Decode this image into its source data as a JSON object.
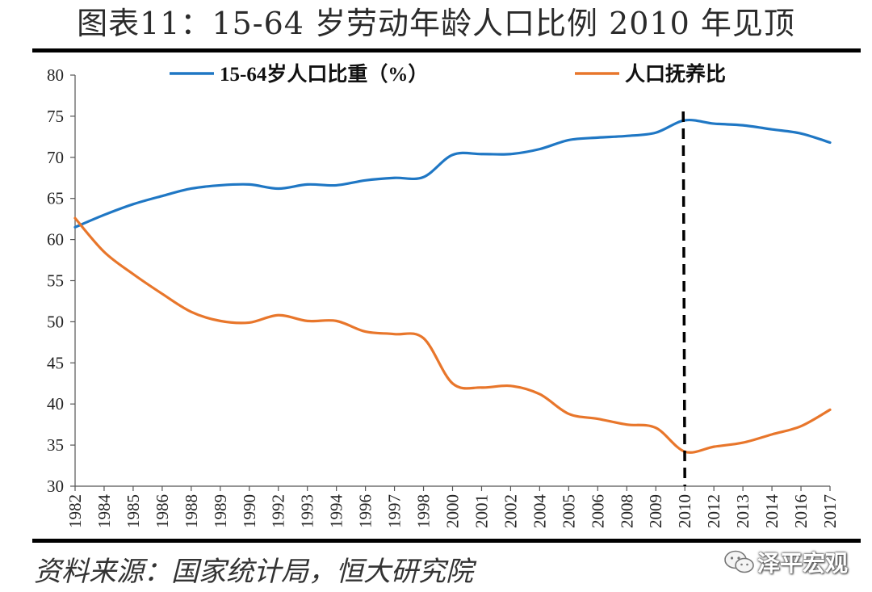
{
  "title": "图表11：15-64 岁劳动年龄人口比例 2010 年见顶",
  "source": "资料来源：国家统计局，恒大研究院",
  "watermark": {
    "text": "泽平宏观",
    "icon": "wechat-icon"
  },
  "colors": {
    "series1": "#1f77c4",
    "series2": "#e8762b",
    "marker": "#000000"
  },
  "chart_data": {
    "type": "line",
    "x": [
      "1982",
      "1984",
      "1985",
      "1986",
      "1988",
      "1989",
      "1990",
      "1992",
      "1993",
      "1994",
      "1996",
      "1997",
      "1998",
      "2000",
      "2001",
      "2002",
      "2004",
      "2005",
      "2006",
      "2008",
      "2009",
      "2010",
      "2012",
      "2013",
      "2014",
      "2016",
      "2017"
    ],
    "ylim": [
      30,
      80
    ],
    "yticks": [
      30,
      35,
      40,
      45,
      50,
      55,
      60,
      65,
      70,
      75,
      80
    ],
    "series": [
      {
        "name": "15-64岁人口比重（%）",
        "color": "#1f77c4",
        "values": [
          61.5,
          63.0,
          64.3,
          65.3,
          66.2,
          66.6,
          66.7,
          66.2,
          66.7,
          66.6,
          67.2,
          67.5,
          67.6,
          70.3,
          70.4,
          70.4,
          71.0,
          72.1,
          72.4,
          72.6,
          73.0,
          74.5,
          74.1,
          73.9,
          73.4,
          72.9,
          71.8
        ]
      },
      {
        "name": "人口抚养比",
        "color": "#e8762b",
        "values": [
          62.6,
          58.5,
          55.8,
          53.4,
          51.2,
          50.1,
          49.9,
          50.8,
          50.1,
          50.1,
          48.8,
          48.5,
          48.0,
          42.5,
          42.0,
          42.2,
          41.2,
          38.8,
          38.2,
          37.5,
          37.1,
          34.2,
          34.8,
          35.3,
          36.3,
          37.3,
          39.3
        ]
      }
    ],
    "marker": {
      "x": "2010",
      "style": "dashed"
    },
    "legend_position": "top"
  }
}
